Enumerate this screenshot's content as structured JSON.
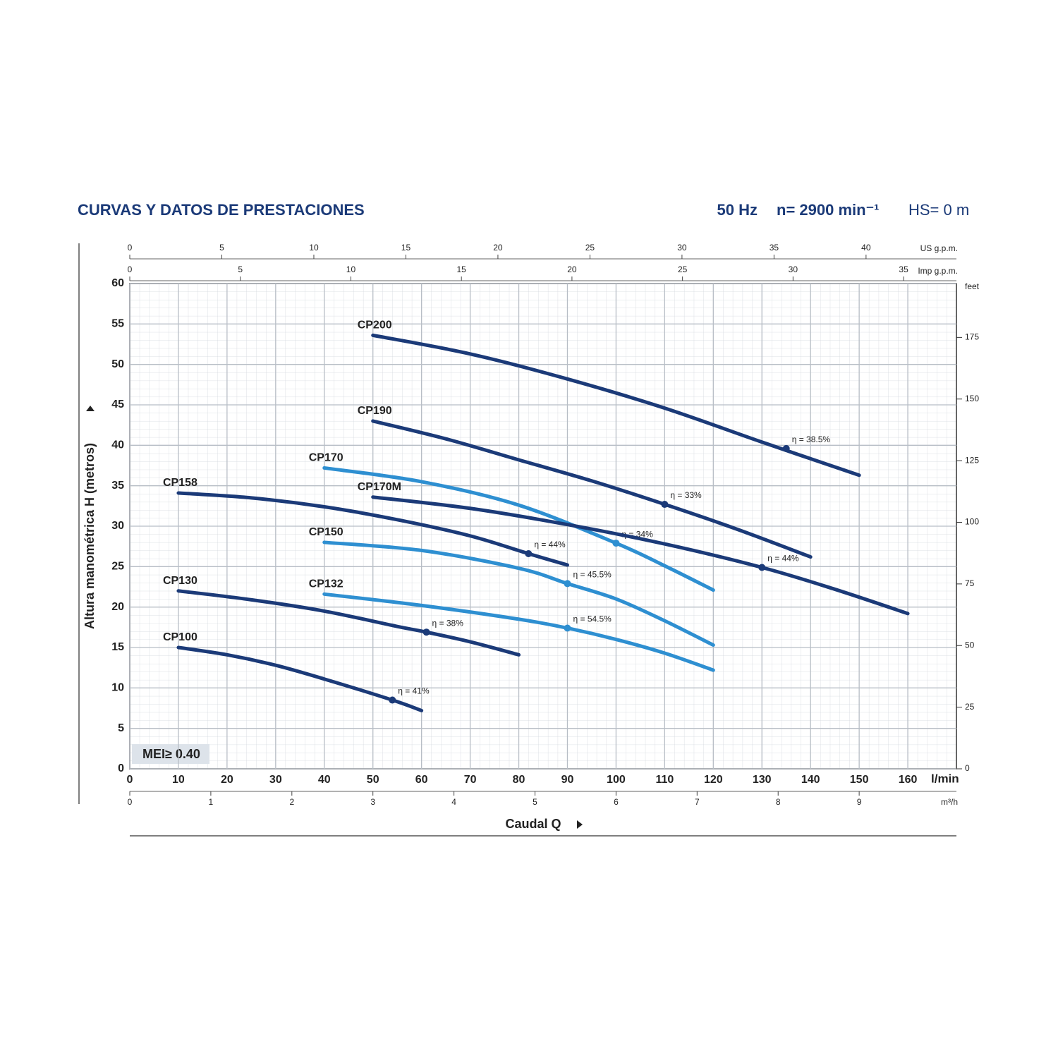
{
  "chart_data": {
    "type": "line",
    "title": "CURVAS Y DATOS DE PRESTACIONES",
    "frequency": "50 Hz",
    "speed": "n= 2900 min⁻¹",
    "suction": "HS= 0 m",
    "x_label": "Caudal Q",
    "x_unit": "l/min",
    "y_label": "Altura manométrica H (metros)",
    "badge": "MEI≥ 0.40",
    "xlim": [
      0,
      170
    ],
    "xticks": [
      0,
      10,
      20,
      30,
      40,
      50,
      60,
      70,
      80,
      90,
      100,
      110,
      120,
      130,
      140,
      150,
      160
    ],
    "ylim": [
      0,
      60
    ],
    "yticks": [
      0,
      5,
      10,
      15,
      20,
      25,
      30,
      35,
      40,
      45,
      50,
      55,
      60
    ],
    "y2_unit": "feet",
    "y2lim": [
      0,
      196.85
    ],
    "y2ticks": [
      0,
      25,
      50,
      75,
      100,
      125,
      150,
      175
    ],
    "x_bottom2": {
      "unit": "m³/h",
      "lim": [
        0,
        10.2
      ],
      "ticks": [
        0,
        1,
        2,
        3,
        4,
        5,
        6,
        7,
        8,
        9
      ]
    },
    "x_top_us": {
      "unit": "US g.p.m.",
      "lim": [
        0,
        44.91
      ],
      "ticks": [
        0,
        5,
        10,
        15,
        20,
        25,
        30,
        35,
        40
      ]
    },
    "x_top_imp": {
      "unit": "Imp g.p.m.",
      "lim": [
        0,
        37.39
      ],
      "ticks": [
        0,
        5,
        10,
        15,
        20,
        25,
        30,
        35
      ]
    },
    "grid": true,
    "series": [
      {
        "name": "CP200",
        "color": "#1b3a78",
        "x": [
          50,
          70,
          90,
          110,
          130,
          150
        ],
        "values": [
          53.6,
          51.3,
          48.2,
          44.6,
          40.4,
          36.3
        ],
        "bep_x": 135,
        "bep_y": 39.6,
        "bep_label": "η = 38.5%"
      },
      {
        "name": "CP190",
        "color": "#1b3a78",
        "x": [
          50,
          65,
          80,
          95,
          110,
          125,
          140
        ],
        "values": [
          43.0,
          40.8,
          38.2,
          35.6,
          32.7,
          29.6,
          26.2
        ],
        "bep_x": 110,
        "bep_y": 32.7,
        "bep_label": "η = 33%"
      },
      {
        "name": "CP170",
        "color": "#2e8fd1",
        "x": [
          40,
          60,
          80,
          100,
          110,
          120
        ],
        "values": [
          37.2,
          35.5,
          32.6,
          27.9,
          25.1,
          22.1
        ],
        "bep_x": 100,
        "bep_y": 27.9,
        "bep_label": "η = 34%"
      },
      {
        "name": "CP170M",
        "color": "#1b3a78",
        "x": [
          50,
          70,
          90,
          110,
          130,
          145,
          160
        ],
        "values": [
          33.6,
          32.2,
          30.2,
          27.8,
          24.9,
          22.2,
          19.2
        ],
        "bep_x": 130,
        "bep_y": 24.9,
        "bep_label": "η = 44%"
      },
      {
        "name": "CP158",
        "color": "#1b3a78",
        "x": [
          10,
          25,
          40,
          55,
          70,
          82,
          90
        ],
        "values": [
          34.1,
          33.5,
          32.4,
          30.8,
          28.8,
          26.6,
          25.2
        ],
        "bep_x": 82,
        "bep_y": 26.6,
        "bep_label": "η = 44%"
      },
      {
        "name": "CP150",
        "color": "#2e8fd1",
        "x": [
          40,
          60,
          80,
          90,
          100,
          110,
          120
        ],
        "values": [
          28.0,
          27.0,
          24.8,
          22.9,
          21.0,
          18.3,
          15.3
        ],
        "bep_x": 90,
        "bep_y": 22.9,
        "bep_label": "η = 45.5%"
      },
      {
        "name": "CP132",
        "color": "#2e8fd1",
        "x": [
          40,
          60,
          80,
          90,
          100,
          110,
          120
        ],
        "values": [
          21.6,
          20.2,
          18.5,
          17.4,
          16.0,
          14.3,
          12.2
        ],
        "bep_x": 90,
        "bep_y": 17.4,
        "bep_label": "η = 54.5%"
      },
      {
        "name": "CP130",
        "color": "#1b3a78",
        "x": [
          10,
          25,
          40,
          55,
          61,
          70,
          80
        ],
        "values": [
          22.0,
          20.9,
          19.5,
          17.6,
          16.9,
          15.7,
          14.1
        ],
        "bep_x": 61,
        "bep_y": 16.9,
        "bep_label": "η = 38%"
      },
      {
        "name": "CP100",
        "color": "#1b3a78",
        "x": [
          10,
          20,
          30,
          40,
          54,
          60
        ],
        "values": [
          15.0,
          14.1,
          12.8,
          11.1,
          8.5,
          7.2
        ],
        "bep_x": 54,
        "bep_y": 8.5,
        "bep_label": "η = 41%"
      }
    ]
  }
}
